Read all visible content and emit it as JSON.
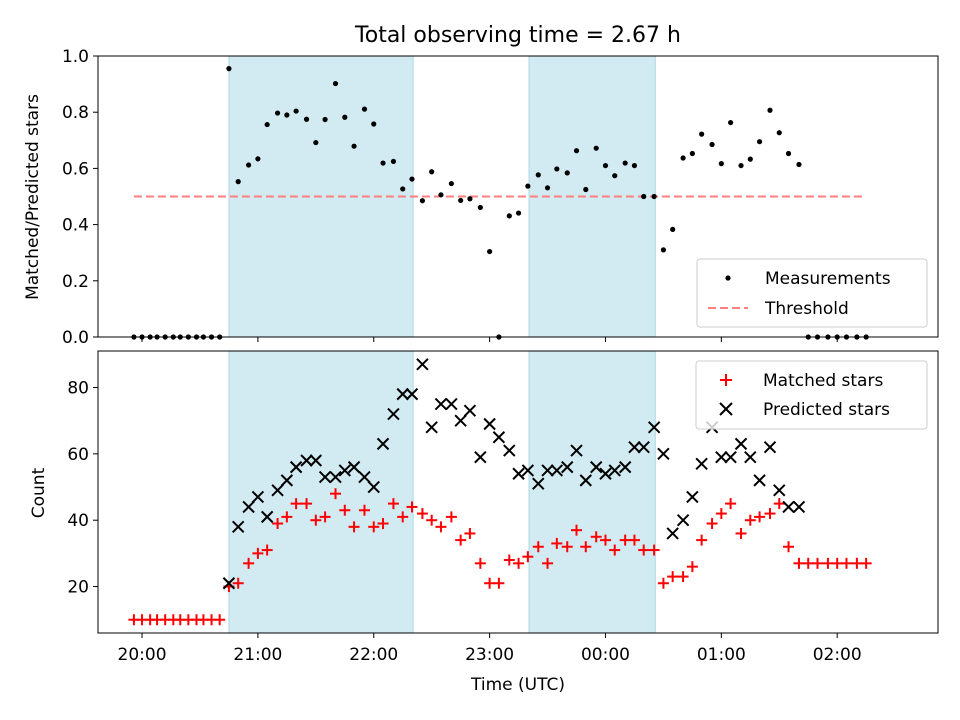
{
  "chart_data": [
    {
      "type": "scatter",
      "title": "Total observing time = 2.67 h",
      "ylabel": "Matched/Predicted stars",
      "ylim": [
        0,
        1.0
      ],
      "yticks": [
        "0.0",
        "0.2",
        "0.4",
        "0.6",
        "0.8",
        "1.0"
      ],
      "xlim_hours": [
        19.62,
        26.87
      ],
      "shaded_intervals_hours": [
        [
          20.75,
          22.34
        ],
        [
          23.34,
          24.43
        ]
      ],
      "shade_color": "#add8e6",
      "threshold": {
        "name": "Threshold",
        "value": 0.5,
        "x_range_hours": [
          19.93,
          26.23
        ],
        "color": "#ff7f7f"
      },
      "series": [
        {
          "name": "Measurements",
          "color": "#000000",
          "x_hours": [
            19.93,
            20.0,
            20.07,
            20.13,
            20.2,
            20.27,
            20.33,
            20.4,
            20.47,
            20.53,
            20.6,
            20.67,
            20.75,
            20.83,
            20.92,
            21.0,
            21.08,
            21.17,
            21.25,
            21.33,
            21.42,
            21.5,
            21.58,
            21.67,
            21.75,
            21.83,
            21.92,
            22.0,
            22.08,
            22.17,
            22.25,
            22.33,
            22.42,
            22.5,
            22.58,
            22.67,
            22.75,
            22.83,
            22.92,
            23.0,
            23.08,
            23.17,
            23.25,
            23.33,
            23.42,
            23.5,
            23.58,
            23.67,
            23.75,
            23.83,
            23.92,
            24.0,
            24.08,
            24.17,
            24.25,
            24.33,
            24.42,
            24.5,
            24.58,
            24.67,
            24.75,
            24.83,
            24.92,
            25.0,
            25.08,
            25.17,
            25.25,
            25.33,
            25.42,
            25.5,
            25.58,
            25.67,
            25.75,
            25.83,
            25.92,
            26.0,
            26.08,
            26.17,
            26.25
          ],
          "y": [
            0,
            0,
            0,
            0,
            0,
            0,
            0,
            0,
            0,
            0,
            0,
            0,
            0.955,
            0.553,
            0.612,
            0.634,
            0.756,
            0.797,
            0.79,
            0.804,
            0.775,
            0.692,
            0.774,
            0.902,
            0.782,
            0.679,
            0.811,
            0.758,
            0.619,
            0.625,
            0.527,
            0.562,
            0.485,
            0.588,
            0.506,
            0.546,
            0.486,
            0.492,
            0.461,
            0.304,
            0.0,
            0.431,
            0.441,
            0.537,
            0.577,
            0.531,
            0.598,
            0.584,
            0.663,
            0.525,
            0.672,
            0.61,
            0.574,
            0.619,
            0.61,
            0.5,
            0.5,
            0.31,
            0.383,
            0.637,
            0.653,
            0.722,
            0.685,
            0.617,
            0.763,
            0.61,
            0.633,
            0.695,
            0.807,
            0.727,
            0.653,
            0.614,
            0,
            0,
            0,
            0,
            0,
            0,
            0
          ]
        }
      ],
      "legend": {
        "position": "lower right",
        "entries": [
          "Measurements",
          "Threshold"
        ]
      }
    },
    {
      "type": "scatter",
      "ylabel": "Count",
      "xlabel": "Time (UTC)",
      "ylim": [
        6,
        91
      ],
      "yticks": [
        20,
        40,
        60,
        80
      ],
      "xlim_hours": [
        19.62,
        26.87
      ],
      "xticks": [
        {
          "hour": 20,
          "label": "20:00"
        },
        {
          "hour": 21,
          "label": "21:00"
        },
        {
          "hour": 22,
          "label": "22:00"
        },
        {
          "hour": 23,
          "label": "23:00"
        },
        {
          "hour": 24,
          "label": "00:00"
        },
        {
          "hour": 25,
          "label": "01:00"
        },
        {
          "hour": 26,
          "label": "02:00"
        }
      ],
      "shaded_intervals_hours": [
        [
          20.75,
          22.34
        ],
        [
          23.34,
          24.43
        ]
      ],
      "series": [
        {
          "name": "Matched stars",
          "marker": "+",
          "color": "#ff0000",
          "x_hours": [
            19.93,
            20.0,
            20.07,
            20.13,
            20.2,
            20.27,
            20.33,
            20.4,
            20.47,
            20.53,
            20.6,
            20.67,
            20.75,
            20.83,
            20.92,
            21.0,
            21.08,
            21.17,
            21.25,
            21.33,
            21.42,
            21.5,
            21.58,
            21.67,
            21.75,
            21.83,
            21.92,
            22.0,
            22.08,
            22.17,
            22.25,
            22.33,
            22.42,
            22.5,
            22.58,
            22.67,
            22.75,
            22.83,
            22.92,
            23.0,
            23.08,
            23.17,
            23.25,
            23.33,
            23.42,
            23.5,
            23.58,
            23.67,
            23.75,
            23.83,
            23.92,
            24.0,
            24.08,
            24.17,
            24.25,
            24.33,
            24.42,
            24.5,
            24.58,
            24.67,
            24.75,
            24.83,
            24.92,
            25.0,
            25.08,
            25.17,
            25.25,
            25.33,
            25.42,
            25.5,
            25.58,
            25.67,
            25.75,
            25.83,
            25.92,
            26.0,
            26.08,
            26.17,
            26.25
          ],
          "y": [
            10,
            10,
            10,
            10,
            10,
            10,
            10,
            10,
            10,
            10,
            10,
            10,
            20,
            21,
            27,
            30,
            31,
            39,
            41,
            45,
            45,
            40,
            41,
            48,
            43,
            38,
            43,
            38,
            39,
            45,
            41,
            44,
            42,
            40,
            38,
            41,
            34,
            36,
            27,
            21,
            21,
            28,
            27,
            29,
            32,
            27,
            33,
            32,
            37,
            32,
            35,
            34,
            31,
            34,
            34,
            31,
            31,
            21,
            23,
            23,
            26,
            34,
            39,
            42,
            45,
            36,
            40,
            41,
            42,
            45,
            32,
            27,
            27,
            27,
            27,
            27,
            27,
            27,
            27
          ]
        },
        {
          "name": "Predicted stars",
          "marker": "x",
          "color": "#000000",
          "x_hours": [
            20.75,
            20.83,
            20.92,
            21.0,
            21.08,
            21.17,
            21.25,
            21.33,
            21.42,
            21.5,
            21.58,
            21.67,
            21.75,
            21.83,
            21.92,
            22.0,
            22.08,
            22.17,
            22.25,
            22.33,
            22.42,
            22.5,
            22.58,
            22.67,
            22.75,
            22.83,
            22.92,
            23.0,
            23.08,
            23.17,
            23.25,
            23.33,
            23.42,
            23.5,
            23.58,
            23.67,
            23.75,
            23.83,
            23.92,
            24.0,
            24.08,
            24.17,
            24.25,
            24.33,
            24.42,
            24.5,
            24.58,
            24.67,
            24.75,
            24.83,
            24.92,
            25.0,
            25.08,
            25.17,
            25.25,
            25.33,
            25.42,
            25.5,
            25.58,
            25.67
          ],
          "y": [
            21,
            38,
            44,
            47,
            41,
            49,
            52,
            56,
            58,
            58,
            53,
            53,
            55,
            56,
            53,
            50,
            63,
            72,
            78,
            78,
            87,
            68,
            75,
            75,
            70,
            73,
            59,
            69,
            65,
            61,
            54,
            55,
            51,
            55,
            55,
            56,
            61,
            52,
            56,
            54,
            55,
            56,
            62,
            62,
            68,
            60,
            36,
            40,
            47,
            57,
            68,
            59,
            59,
            63,
            59,
            52,
            62,
            49,
            44,
            44
          ]
        }
      ],
      "legend": {
        "position": "upper right",
        "entries": [
          "Matched stars",
          "Predicted stars"
        ]
      }
    }
  ]
}
